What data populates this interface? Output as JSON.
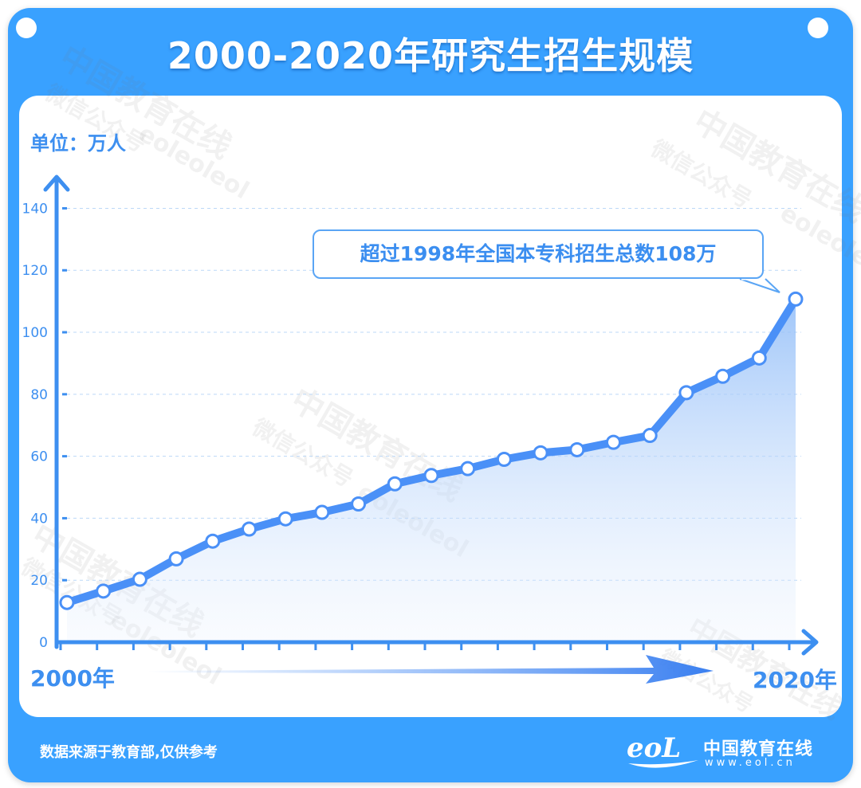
{
  "title": "2000-2020年研究生招生规模",
  "unit_label": "单位：万人",
  "annotation": "超过1998年全国本专科招生总数108万",
  "footer": {
    "source": "数据来源于教育部,仅供参考",
    "brand_name": "中国教育在线",
    "brand_url": "www.eol.cn",
    "logo_text": "eoL"
  },
  "watermark": {
    "line1": "中国教育在线",
    "line2": "微信公众号",
    "line3": "eoleoleol"
  },
  "colors": {
    "frame": "#39a1ff",
    "axis": "#3d8ff0",
    "line": "#4a90f7",
    "area_top": "#8fbcf8",
    "text_blue": "#3d8ff0"
  },
  "chart_data": {
    "type": "area",
    "title": "2000-2020年研究生招生规模",
    "xlabel_start": "2000年",
    "xlabel_end": "2020年",
    "ylabel": "单位：万人",
    "x": [
      2000,
      2001,
      2002,
      2003,
      2004,
      2005,
      2006,
      2007,
      2008,
      2009,
      2010,
      2011,
      2012,
      2013,
      2014,
      2015,
      2016,
      2017,
      2018,
      2019,
      2020
    ],
    "values": [
      12.8,
      16.5,
      20.3,
      26.9,
      32.6,
      36.5,
      39.8,
      41.9,
      44.6,
      51.1,
      53.8,
      56.0,
      59.0,
      61.1,
      62.1,
      64.5,
      66.7,
      80.5,
      85.8,
      91.7,
      110.7
    ],
    "ylim": [
      0,
      150
    ],
    "yticks": [
      0,
      20,
      40,
      60,
      80,
      100,
      120,
      140
    ],
    "grid": true,
    "legend": "none"
  }
}
